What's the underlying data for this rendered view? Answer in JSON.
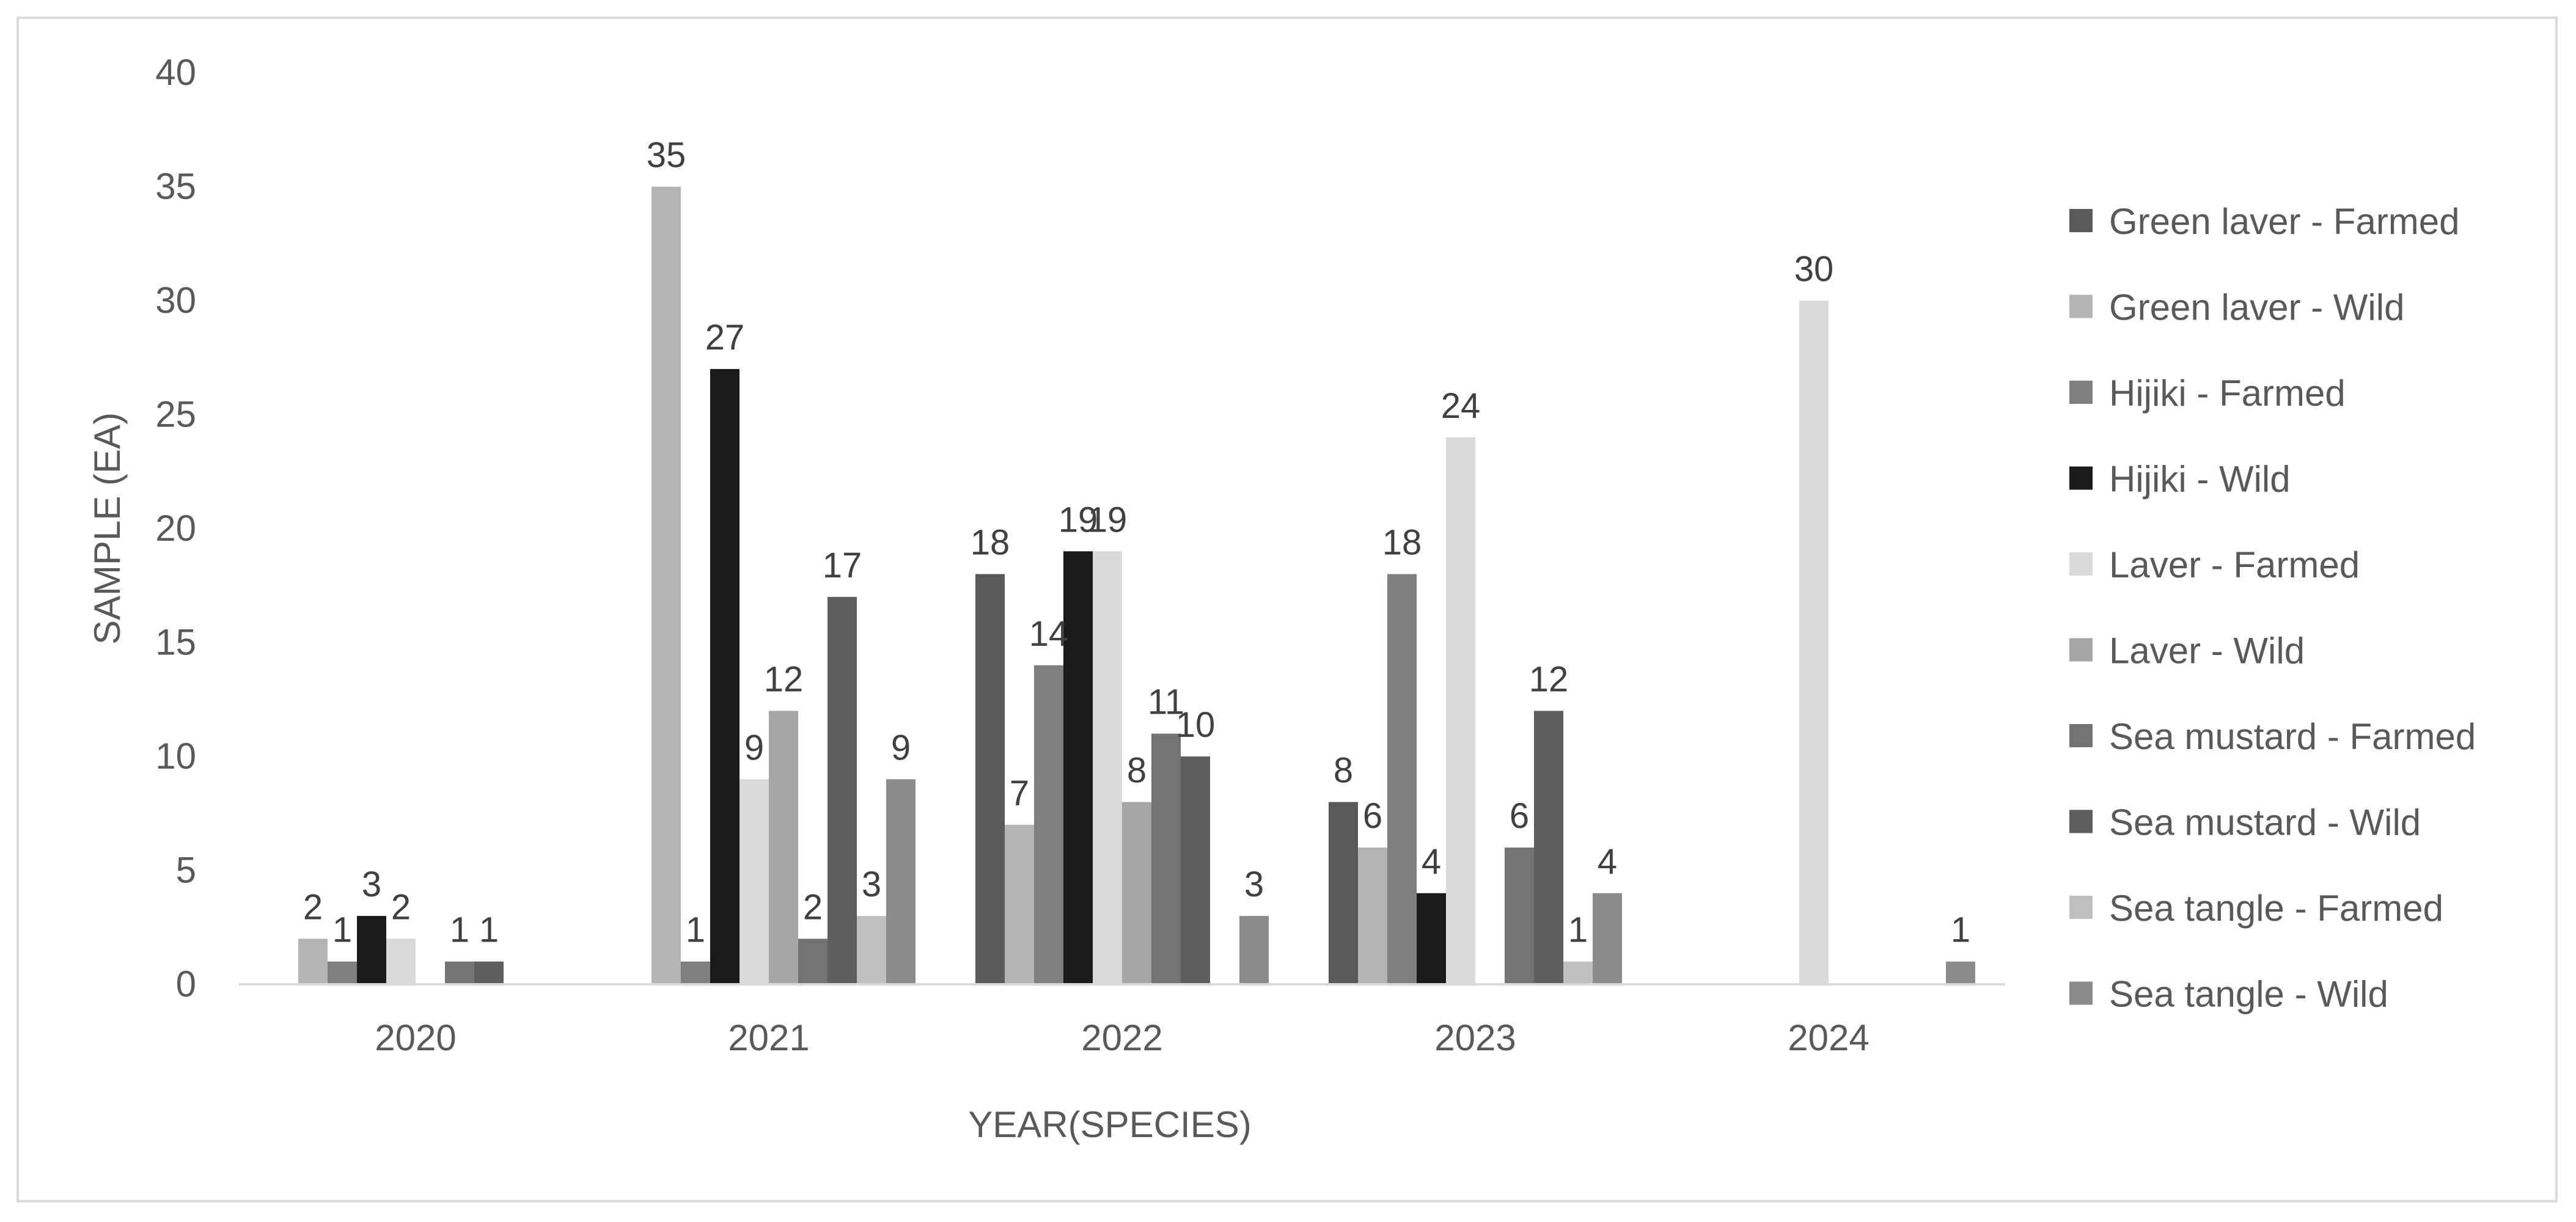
{
  "chart_data": {
    "type": "bar",
    "title": "",
    "xlabel": "YEAR(SPECIES)",
    "ylabel": "SAMPLE (EA)",
    "ylim": [
      0,
      40
    ],
    "yticks": [
      0,
      5,
      10,
      15,
      20,
      25,
      30,
      35,
      40
    ],
    "grid": false,
    "legend_position": "right",
    "categories": [
      "2020",
      "2021",
      "2022",
      "2023",
      "2024"
    ],
    "series": [
      {
        "name": "Green laver - Farmed",
        "color": "#595959",
        "values": [
          null,
          null,
          18,
          8,
          null
        ]
      },
      {
        "name": "Green laver - Wild",
        "color": "#b3b3b3",
        "values": [
          2,
          35,
          7,
          6,
          null
        ]
      },
      {
        "name": "Hijiki - Farmed",
        "color": "#7f7f7f",
        "values": [
          1,
          1,
          14,
          18,
          null
        ]
      },
      {
        "name": "Hijiki - Wild",
        "color": "#1a1a1a",
        "values": [
          3,
          27,
          19,
          4,
          null
        ]
      },
      {
        "name": "Laver - Farmed",
        "color": "#d9d9d9",
        "values": [
          2,
          9,
          19,
          24,
          30
        ]
      },
      {
        "name": "Laver - Wild",
        "color": "#a6a6a6",
        "values": [
          null,
          12,
          8,
          null,
          null
        ]
      },
      {
        "name": "Sea mustard - Farmed",
        "color": "#737373",
        "values": [
          1,
          2,
          11,
          6,
          null
        ]
      },
      {
        "name": "Sea mustard - Wild",
        "color": "#5f5f5f",
        "values": [
          1,
          17,
          10,
          12,
          null
        ]
      },
      {
        "name": "Sea tangle - Farmed",
        "color": "#bfbfbf",
        "values": [
          null,
          3,
          null,
          1,
          null
        ]
      },
      {
        "name": "Sea tangle - Wild",
        "color": "#8c8c8c",
        "values": [
          null,
          9,
          3,
          4,
          1
        ]
      }
    ]
  }
}
